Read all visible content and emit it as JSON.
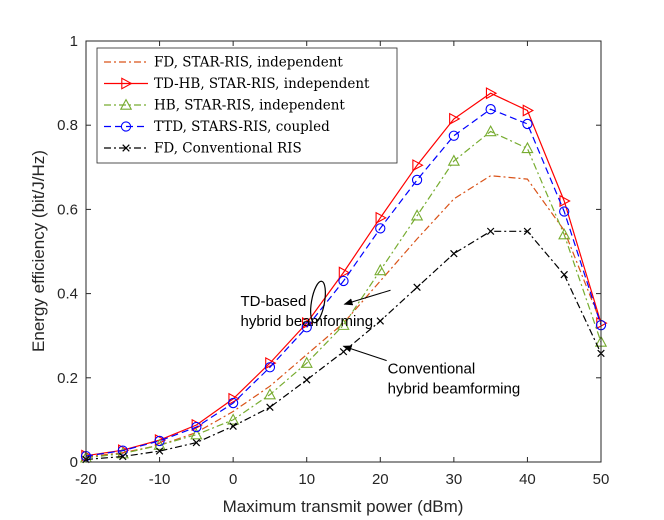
{
  "chart_data": {
    "type": "line",
    "title": "",
    "xlabel": "Maximum transmit power (dBm)",
    "ylabel": "Energy efficiency (bit/J/Hz)",
    "xlim": [
      -20,
      50
    ],
    "ylim": [
      0,
      1
    ],
    "xticks": [
      -20,
      -10,
      0,
      10,
      20,
      30,
      40,
      50
    ],
    "yticks": [
      0,
      0.2,
      0.4,
      0.6,
      0.8,
      1
    ],
    "xtick_labels": [
      "-20",
      "-10",
      "0",
      "10",
      "20",
      "30",
      "40",
      "50"
    ],
    "ytick_labels": [
      "0",
      "0.2",
      "0.4",
      "0.6",
      "0.8",
      "1"
    ],
    "grid": false,
    "legend_position": "top-left",
    "x": [
      -20,
      -15,
      -10,
      -5,
      0,
      5,
      10,
      15,
      20,
      25,
      30,
      35,
      40,
      45,
      50
    ],
    "series": [
      {
        "name": "FD, STAR-RIS, independent",
        "color": "#D95319",
        "dash": "dashdot",
        "marker": "none",
        "values": [
          0.012,
          0.022,
          0.04,
          0.07,
          0.12,
          0.18,
          0.255,
          0.33,
          0.43,
          0.53,
          0.625,
          0.68,
          0.672,
          0.55,
          0.33
        ]
      },
      {
        "name": "TD-HB, STAR-RIS, independent",
        "color": "#FF0000",
        "dash": "solid",
        "marker": "triangle-right",
        "values": [
          0.015,
          0.028,
          0.052,
          0.088,
          0.15,
          0.235,
          0.33,
          0.45,
          0.58,
          0.705,
          0.815,
          0.876,
          0.835,
          0.62,
          0.33
        ]
      },
      {
        "name": "HB, STAR-RIS, independent",
        "color": "#77AC30",
        "dash": "dashdot",
        "marker": "triangle-up",
        "values": [
          0.01,
          0.02,
          0.04,
          0.065,
          0.1,
          0.16,
          0.235,
          0.325,
          0.455,
          0.585,
          0.715,
          0.785,
          0.745,
          0.54,
          0.285
        ]
      },
      {
        "name": "TTD, STARS-RIS, coupled",
        "color": "#0000FF",
        "dash": "dashed",
        "marker": "circle",
        "values": [
          0.014,
          0.027,
          0.05,
          0.083,
          0.14,
          0.225,
          0.32,
          0.43,
          0.555,
          0.67,
          0.775,
          0.838,
          0.803,
          0.595,
          0.325
        ]
      },
      {
        "name": "FD, Conventional RIS",
        "color": "#000000",
        "dash": "dashdot",
        "marker": "x",
        "values": [
          0.006,
          0.013,
          0.026,
          0.046,
          0.085,
          0.13,
          0.195,
          0.262,
          0.335,
          0.415,
          0.495,
          0.548,
          0.548,
          0.445,
          0.258
        ]
      }
    ],
    "annotations": [
      {
        "lines": [
          "TD-based",
          "hybrid beamforming"
        ],
        "data_x": 1,
        "data_y": 0.37,
        "arrow_to": [
          7.6,
          0.38
        ]
      },
      {
        "lines": [
          "Conventional",
          "hybrid beamforming"
        ],
        "data_x": 21,
        "data_y": 0.21,
        "arrow_to": [
          15,
          0.275
        ]
      }
    ]
  }
}
